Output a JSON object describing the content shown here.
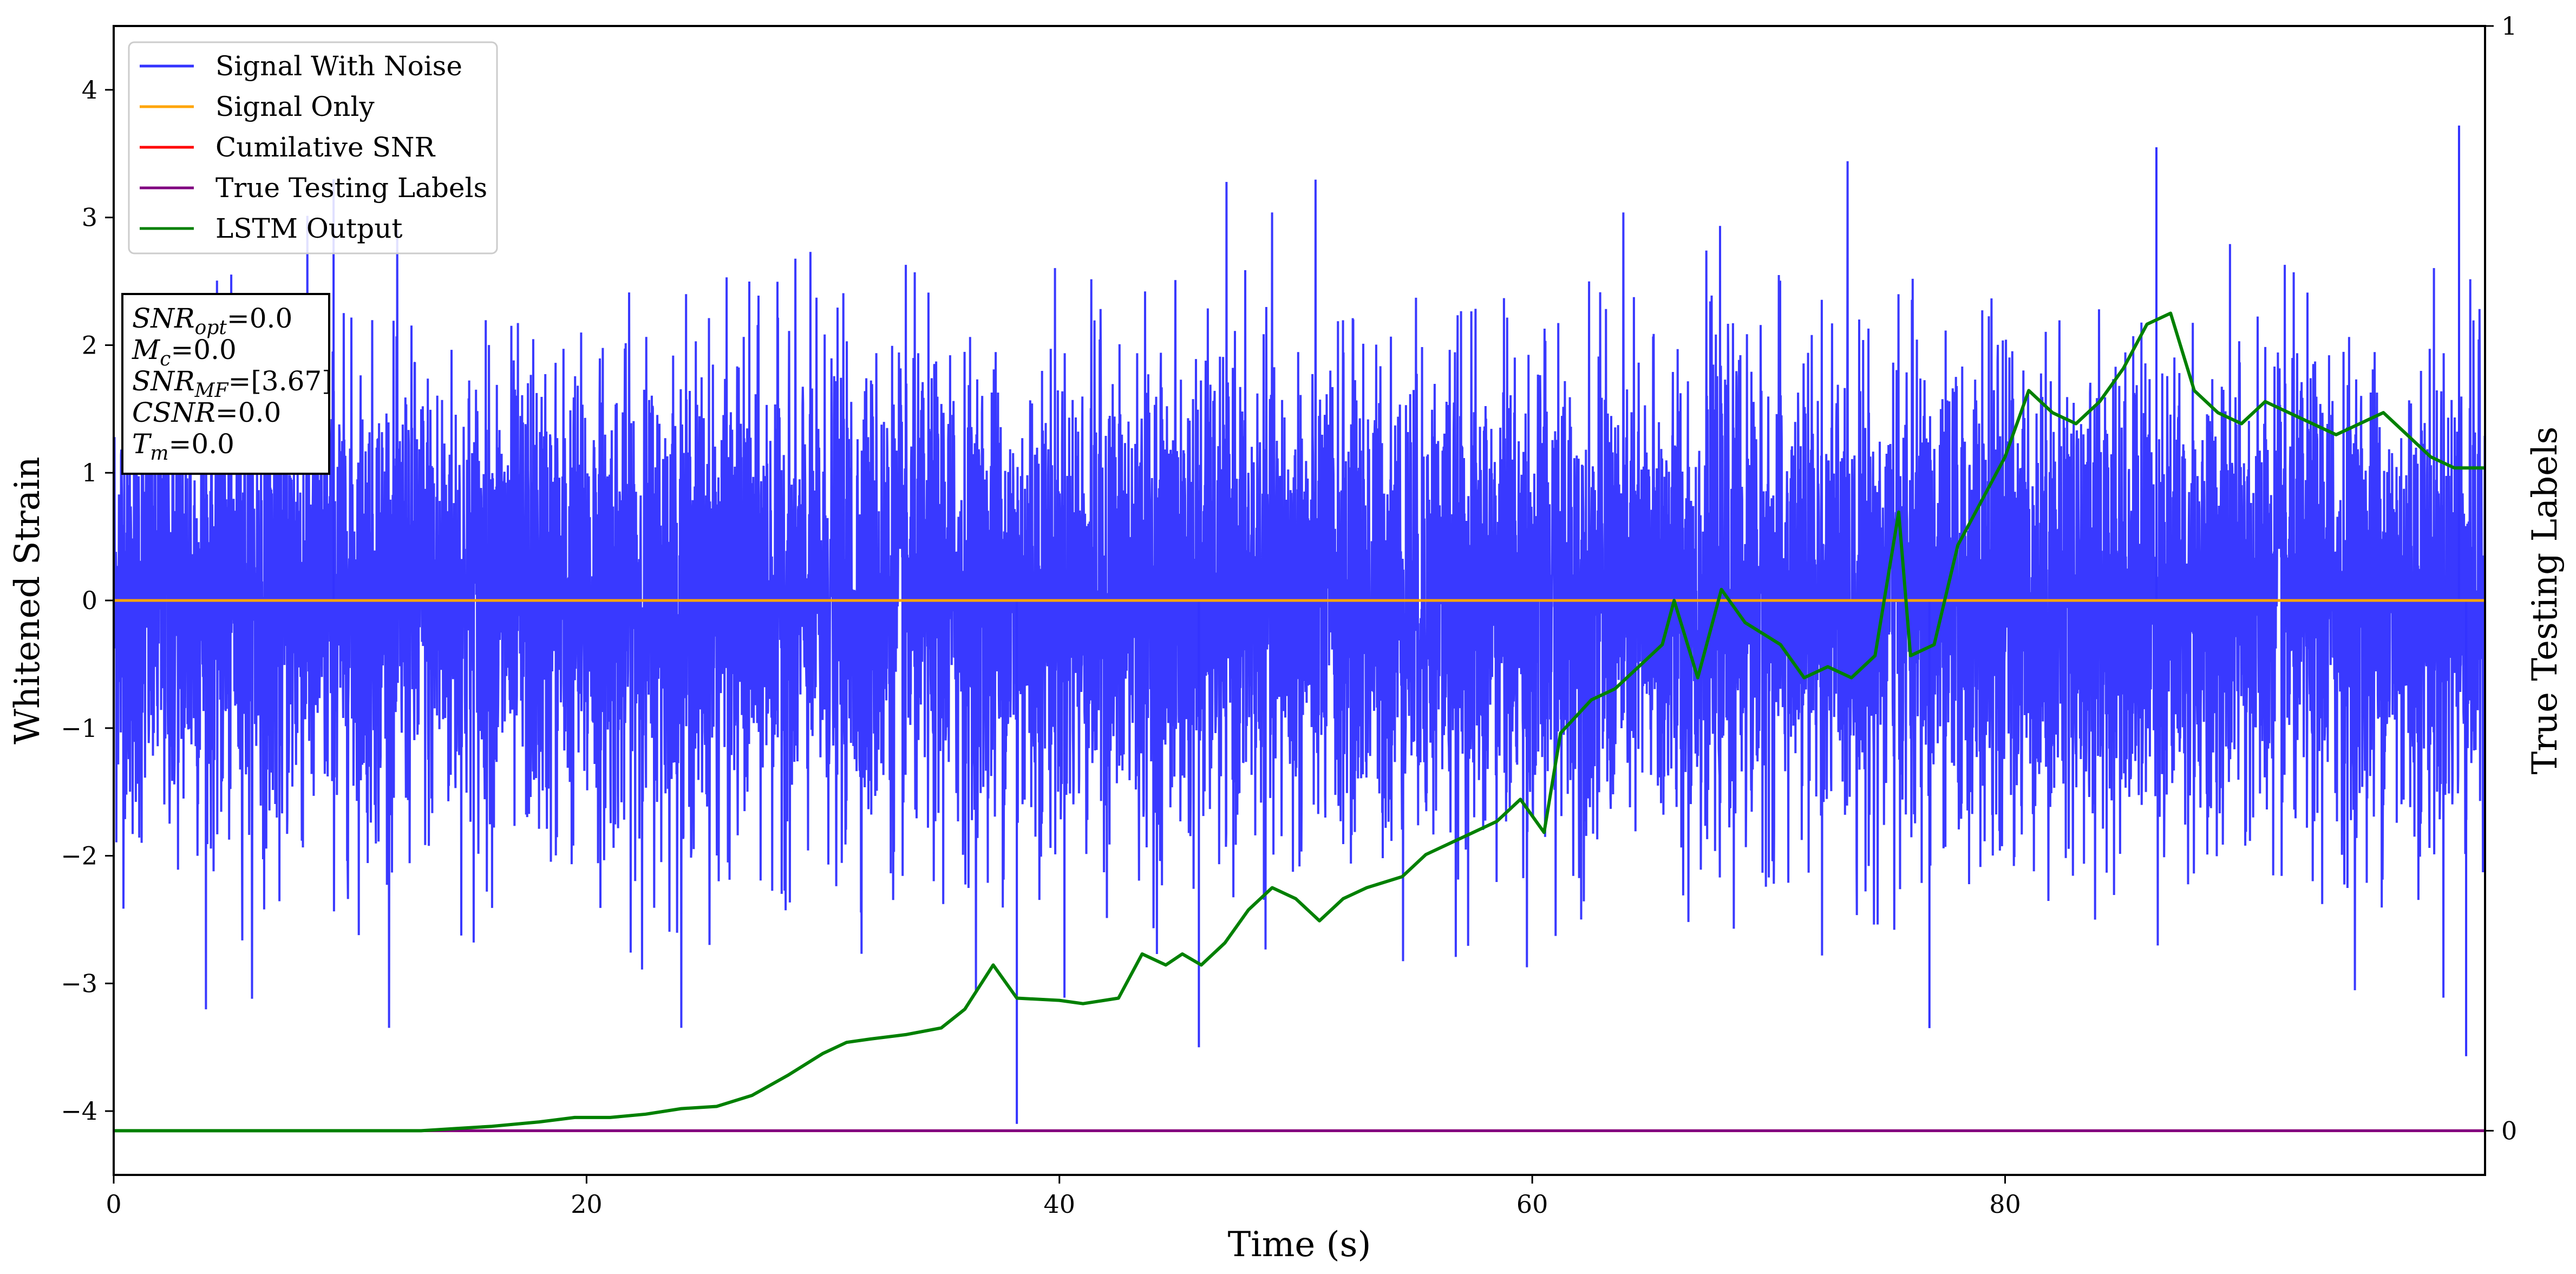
{
  "chart_data": {
    "type": "line",
    "xlabel": "Time (s)",
    "ylabel": "Whitened Strain",
    "y2label": "True Testing Labels",
    "xlim": [
      0,
      100.3
    ],
    "ylim": [
      -4.5,
      4.5
    ],
    "y2lim": [
      -0.04,
      1.0
    ],
    "grid": false,
    "legend_position": "top-left",
    "xticks": [
      0,
      20,
      40,
      60,
      80
    ],
    "xtick_labels": [
      "0",
      "20",
      "40",
      "60",
      "80"
    ],
    "yticks": [
      4,
      3,
      2,
      1,
      0,
      -1,
      -2,
      -3,
      -4
    ],
    "ytick_labels": [
      "4",
      "3",
      "2",
      "1",
      "0",
      "−1",
      "−2",
      "−3",
      "−4"
    ],
    "y2ticks": [
      1,
      0
    ],
    "y2tick_labels": [
      "1",
      "0"
    ],
    "series": [
      {
        "name": "Signal With Noise",
        "color": "#3333ff",
        "axis": "left",
        "kind": "noise",
        "x_range": [
          0,
          100.3
        ],
        "envelope": [
          -3.6,
          3.7
        ],
        "peaks": [
          {
            "x": 38.2,
            "y": -4.1
          },
          {
            "x": 86.4,
            "y": 3.55
          },
          {
            "x": 99.2,
            "y": 3.72
          },
          {
            "x": 99.5,
            "y": -3.57
          },
          {
            "x": 45.9,
            "y": -3.5
          },
          {
            "x": 76.8,
            "y": -3.35
          },
          {
            "x": 9.3,
            "y": 3.3
          }
        ]
      },
      {
        "name": "Signal Only",
        "color": "#ffa500",
        "axis": "left",
        "x": [
          0,
          100.3
        ],
        "y": [
          0,
          0
        ]
      },
      {
        "name": "Cumilative SNR",
        "color": "#ff0000",
        "axis": "right",
        "x": [
          0,
          100.3
        ],
        "y": [
          0,
          0
        ]
      },
      {
        "name": "True Testing Labels",
        "color": "#800080",
        "axis": "right",
        "x": [
          0,
          100.3
        ],
        "y": [
          0,
          0
        ]
      },
      {
        "name": "LSTM Output",
        "color": "#008000",
        "axis": "right",
        "x": [
          0,
          13,
          14.5,
          16,
          18,
          19.5,
          21,
          22.5,
          24,
          25.5,
          27,
          28.5,
          30,
          31,
          32,
          33.5,
          35,
          36,
          37.2,
          38.2,
          40,
          41,
          42.5,
          43.5,
          44.5,
          45.2,
          46,
          47,
          48,
          49,
          50,
          51,
          52,
          53,
          54.5,
          55.5,
          56.5,
          57.5,
          58.5,
          59.5,
          60.5,
          61.2,
          62.5,
          63.5,
          64.5,
          65.5,
          66,
          67,
          68,
          69,
          70.5,
          71.5,
          72.5,
          73.5,
          74.5,
          75.5,
          76,
          77,
          78,
          79,
          80,
          81,
          82,
          83,
          84,
          85,
          86,
          87,
          88,
          89,
          90,
          91,
          92,
          93,
          94,
          95,
          96,
          97,
          98,
          99,
          100.3
        ],
        "y": [
          0,
          0,
          0.002,
          0.004,
          0.008,
          0.012,
          0.012,
          0.015,
          0.02,
          0.022,
          0.032,
          0.05,
          0.07,
          0.08,
          0.083,
          0.087,
          0.093,
          0.11,
          0.15,
          0.12,
          0.118,
          0.115,
          0.12,
          0.16,
          0.15,
          0.16,
          0.15,
          0.17,
          0.2,
          0.22,
          0.21,
          0.19,
          0.21,
          0.22,
          0.23,
          0.25,
          0.26,
          0.27,
          0.28,
          0.3,
          0.27,
          0.36,
          0.39,
          0.4,
          0.42,
          0.44,
          0.48,
          0.41,
          0.49,
          0.46,
          0.44,
          0.41,
          0.42,
          0.41,
          0.43,
          0.56,
          0.43,
          0.44,
          0.53,
          0.57,
          0.61,
          0.67,
          0.65,
          0.64,
          0.66,
          0.69,
          0.73,
          0.74,
          0.67,
          0.65,
          0.64,
          0.66,
          0.65,
          0.64,
          0.63,
          0.64,
          0.65,
          0.63,
          0.61,
          0.6,
          0.6
        ]
      }
    ],
    "annotation_box": {
      "lines": [
        {
          "sym": "SNR",
          "sub": "opt",
          "val": "=0.0"
        },
        {
          "sym": "M",
          "sub": "c",
          "val": "=0.0"
        },
        {
          "sym": "SNR",
          "sub": "MF",
          "val": "=[3.67]"
        },
        {
          "sym": "CSNR",
          "sub": "",
          "val": "=0.0"
        },
        {
          "sym": "T",
          "sub": "m",
          "val": "=0.0"
        }
      ]
    }
  }
}
